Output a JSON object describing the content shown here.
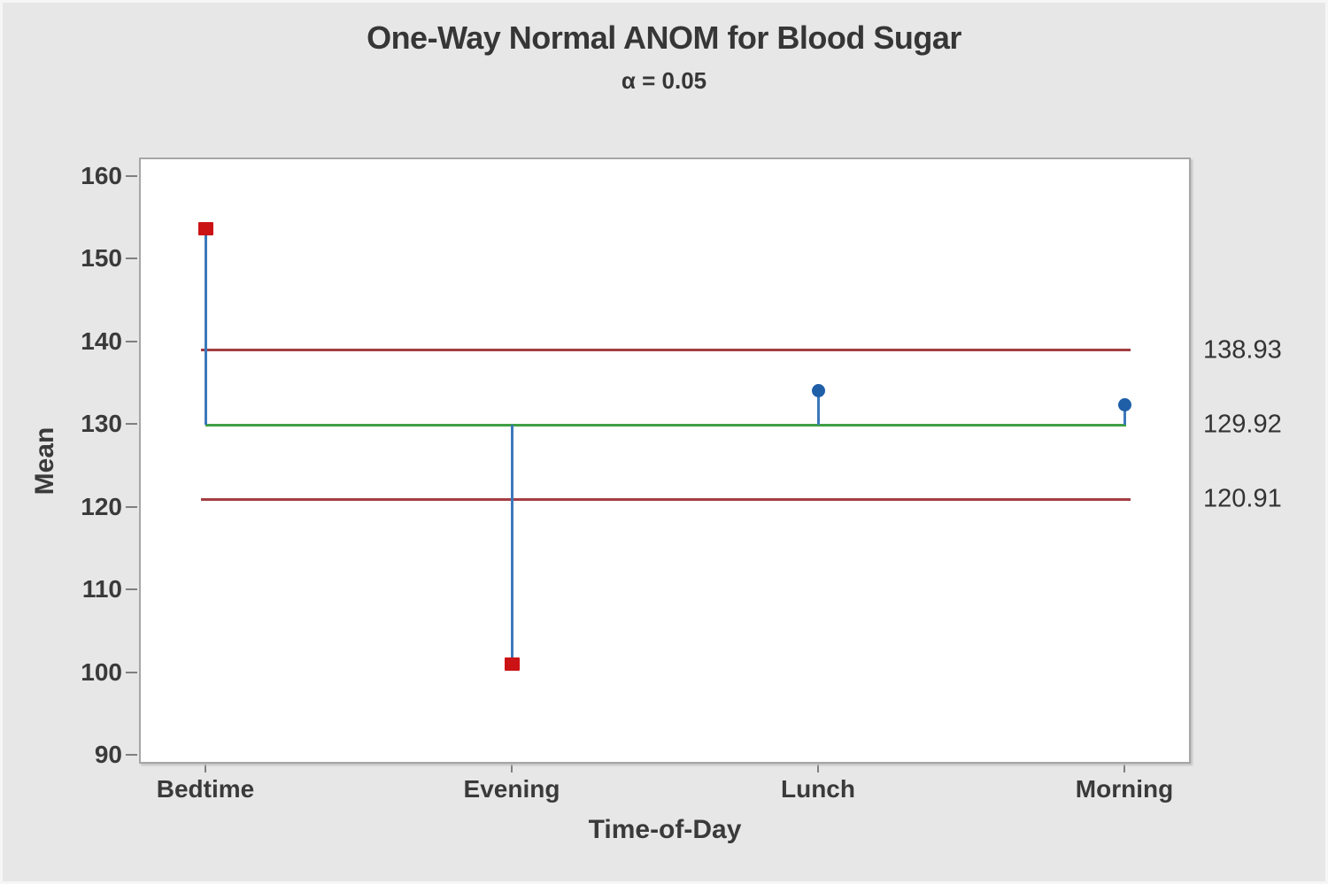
{
  "window": {
    "background": "#e7e7e7"
  },
  "chart_data": {
    "type": "anom",
    "title": "One-Way Normal ANOM for Blood Sugar",
    "subtitle": "α = 0.05",
    "alpha": "0.05",
    "xlabel": "Time-of-Day",
    "ylabel": "Mean",
    "categories": [
      "Bedtime",
      "Evening",
      "Lunch",
      "Morning"
    ],
    "group_means": [
      153.6,
      101.0,
      134.0,
      132.3
    ],
    "significant": [
      true,
      true,
      false,
      false
    ],
    "upper_decision_limit": 138.93,
    "center_line": 129.92,
    "lower_decision_limit": 120.91,
    "limit_labels": {
      "upper": "138.93",
      "center": "129.92",
      "lower": "120.91"
    },
    "ylim": [
      90,
      160
    ],
    "yticks": [
      160,
      150,
      140,
      130,
      120,
      110,
      100,
      90
    ],
    "grid": false,
    "legend": "none",
    "colors": {
      "background": "#e7e7e7",
      "plot_background": "#ffffff",
      "plot_border": "#a6a6a6",
      "decision_limit_line": "#a33e44",
      "center_line": "#3fa044",
      "stem": "#3b78ba",
      "significant_point": "#cb1316",
      "normal_point": "#1f5fa8",
      "text": "#3a3a3a",
      "tick": "#7f7f7f"
    }
  }
}
